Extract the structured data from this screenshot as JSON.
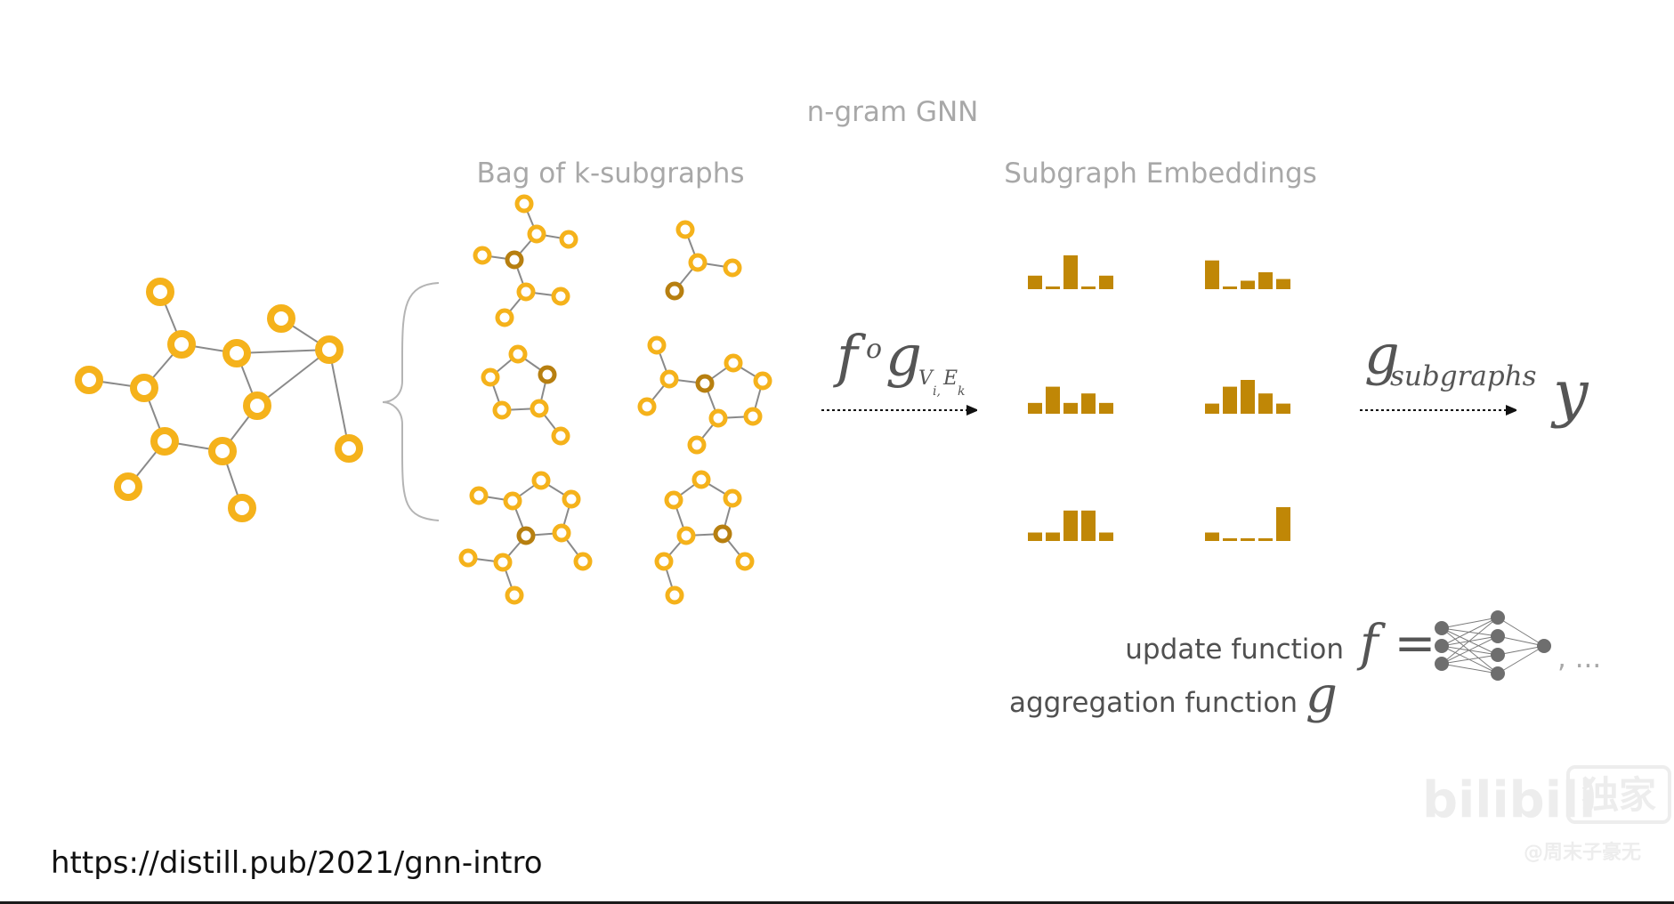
{
  "title": "n-gram GNN",
  "bag_label": "Bag of k-subgraphs",
  "embed_label": "Subgraph Embeddings",
  "compose_math": {
    "f": "f",
    "circ": "o",
    "g": "g",
    "sub_v": "V",
    "sub_i": "i,",
    "sub_e": "E",
    "sub_k": "k"
  },
  "agg_math": {
    "g": "g",
    "sub": "subgraphs"
  },
  "output_symbol": "y",
  "update_label": "update function",
  "update_symbol": "f =",
  "aggregation_label": "aggregation function",
  "aggregation_symbol": "g",
  "ellipsis": ", ...",
  "url": "https://distill.pub/2021/gnn-intro",
  "watermark": {
    "logo": "bilibili",
    "tag": "独家",
    "credit": "@周末子豪无"
  },
  "colors": {
    "node": "#f5b21b",
    "node_center": "#b77f10",
    "bar": "#c08706",
    "edge": "#8a8a8a",
    "text": "#a8a8a8"
  },
  "embeddings": [
    [
      0.4,
      0.08,
      1.0,
      0.08,
      0.4
    ],
    [
      0.85,
      0.08,
      0.25,
      0.5,
      0.3
    ],
    [
      0.32,
      0.8,
      0.32,
      0.6,
      0.32
    ],
    [
      0.3,
      0.8,
      1.0,
      0.6,
      0.3
    ],
    [
      0.25,
      0.25,
      0.9,
      0.9,
      0.25
    ],
    [
      0.25,
      0.08,
      0.08,
      0.08,
      1.0
    ]
  ]
}
